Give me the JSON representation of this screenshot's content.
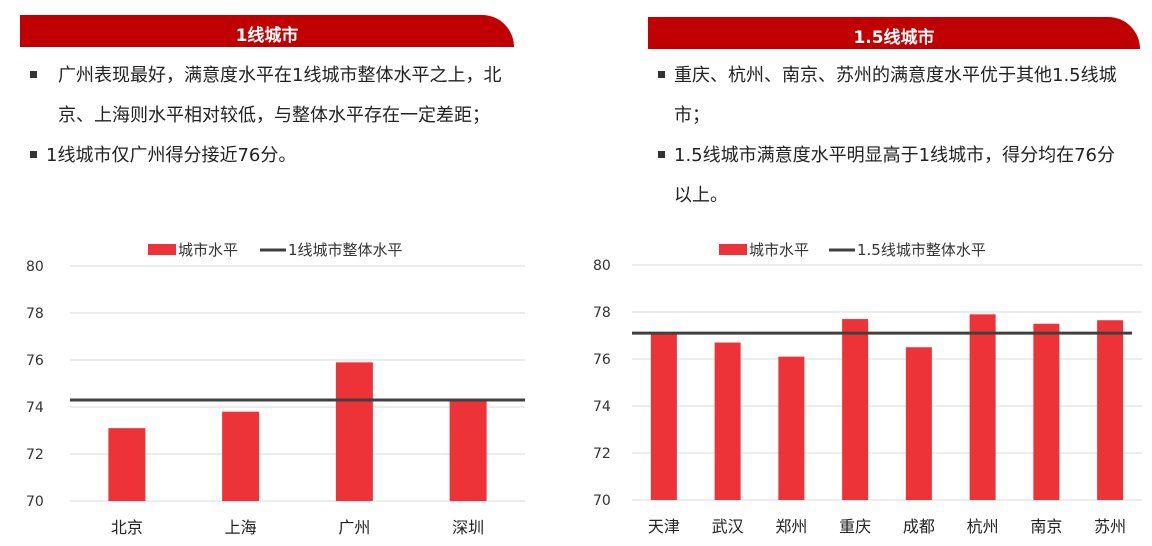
{
  "left": {
    "title": "1线城市",
    "bullets": [
      "广州表现最好，满意度水平在1线城市整体水平之上，北京、上海则水平相对较低，与整体水平存在一定差距；",
      "1线城市仅广州得分接近76分。"
    ]
  },
  "right": {
    "title": "1.5线城市",
    "bullets": [
      "重庆、杭州、南京、苏州的满意度水平优于其他1.5线城市；",
      "1.5线城市满意度水平明显高于1线城市，得分均在76分以上。"
    ]
  },
  "colors": {
    "bar": "#ee3338",
    "header": "#c00000",
    "line": "#404040"
  },
  "chart_data": [
    {
      "type": "bar",
      "categories": [
        "北京",
        "上海",
        "广州",
        "深圳"
      ],
      "series": [
        {
          "name": "城市水平",
          "values": [
            73.1,
            73.8,
            75.9,
            74.3
          ]
        },
        {
          "name": "1线城市整体水平",
          "value": 74.3,
          "kind": "line"
        }
      ],
      "ylim": [
        70,
        80
      ],
      "yticks": [
        70,
        72,
        74,
        76,
        78,
        80
      ],
      "grid": true,
      "legend": "top"
    },
    {
      "type": "bar",
      "categories": [
        "天津",
        "武汉",
        "郑州",
        "重庆",
        "成都",
        "杭州",
        "南京",
        "苏州"
      ],
      "series": [
        {
          "name": "城市水平",
          "values": [
            77.1,
            76.7,
            76.1,
            77.7,
            76.5,
            77.9,
            77.5,
            77.65
          ]
        },
        {
          "name": "1.5线城市整体水平",
          "value": 77.1,
          "kind": "line"
        }
      ],
      "ylim": [
        70,
        80
      ],
      "yticks": [
        70,
        72,
        74,
        76,
        78,
        80
      ],
      "grid": true,
      "legend": "top"
    }
  ]
}
